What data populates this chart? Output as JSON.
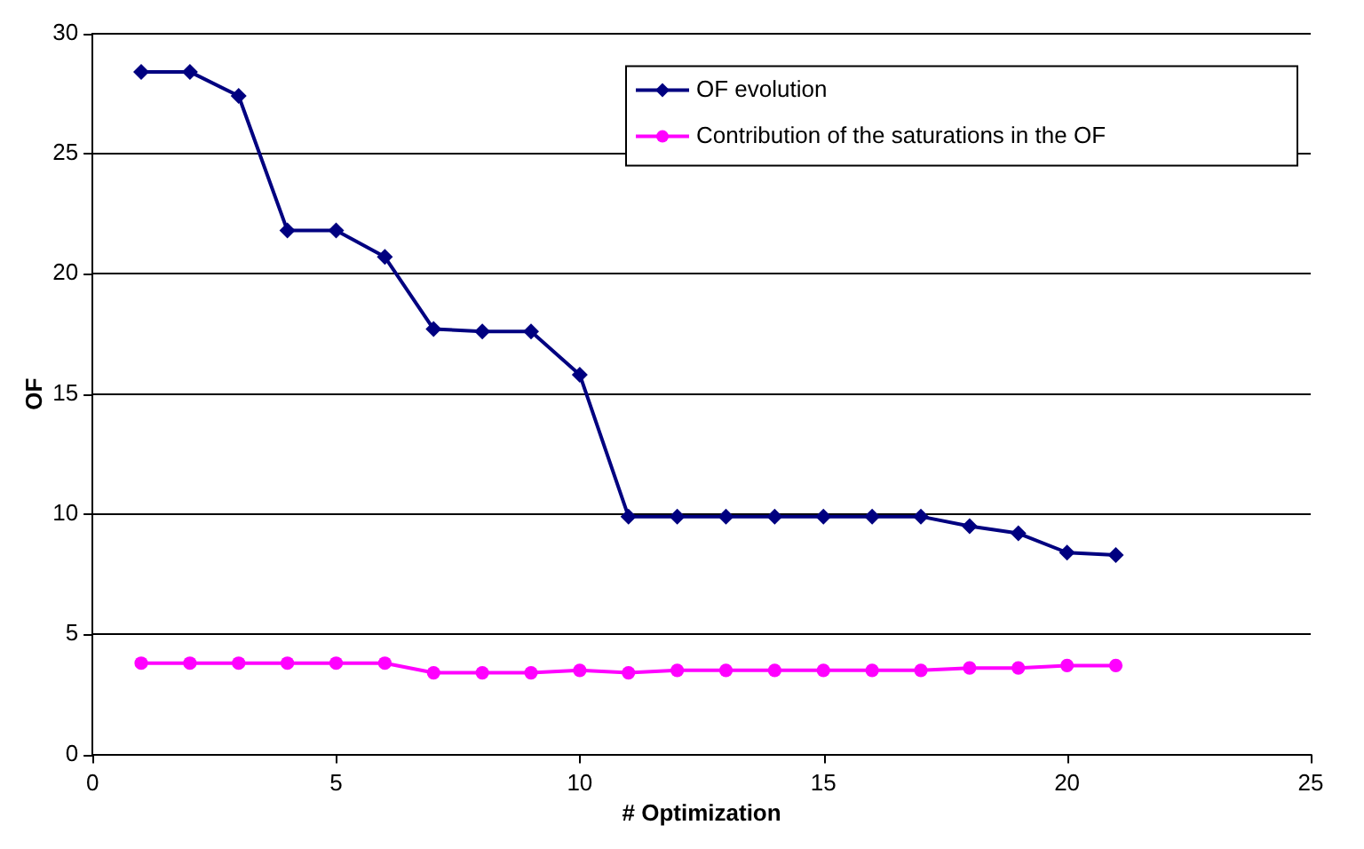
{
  "chart_data": {
    "type": "line",
    "xlabel": "# Optimization",
    "ylabel": "OF",
    "x": [
      1,
      2,
      3,
      4,
      5,
      6,
      7,
      8,
      9,
      10,
      11,
      12,
      13,
      14,
      15,
      16,
      17,
      18,
      19,
      20,
      21
    ],
    "series": [
      {
        "name": "OF evolution",
        "color": "#000080",
        "marker": "diamond",
        "values": [
          28.4,
          28.4,
          27.4,
          21.8,
          21.8,
          20.7,
          17.7,
          17.6,
          17.6,
          15.8,
          9.9,
          9.9,
          9.9,
          9.9,
          9.9,
          9.9,
          9.9,
          9.5,
          9.2,
          8.4,
          8.3
        ]
      },
      {
        "name": "Contribution of the saturations in the OF",
        "color": "#ff00ff",
        "marker": "circle",
        "values": [
          3.8,
          3.8,
          3.8,
          3.8,
          3.8,
          3.8,
          3.4,
          3.4,
          3.4,
          3.5,
          3.4,
          3.5,
          3.5,
          3.5,
          3.5,
          3.5,
          3.5,
          3.6,
          3.6,
          3.7,
          3.7
        ]
      }
    ],
    "xlim": [
      0,
      25
    ],
    "xticks": [
      0,
      5,
      10,
      15,
      20,
      25
    ],
    "ylim": [
      0,
      30
    ],
    "yticks": [
      0,
      5,
      10,
      15,
      20,
      25,
      30
    ],
    "grid": "y",
    "legend": "top right",
    "line_style": "solid"
  }
}
